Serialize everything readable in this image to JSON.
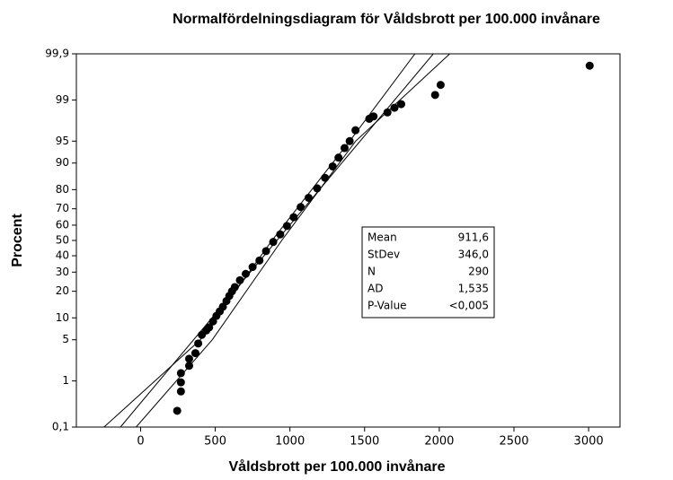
{
  "chart_data": {
    "type": "probability",
    "title": "Normalfördelningsdiagram för Våldsbrott per 100.000 invånare",
    "xlabel": "Våldsbrott per 100.000 invånare",
    "ylabel": "Procent",
    "xlim": [
      -430,
      3210
    ],
    "xticks": [
      0,
      500,
      1000,
      1500,
      2000,
      2500,
      3000
    ],
    "ylim": [
      0.1,
      99.9
    ],
    "yscale": "normal",
    "yticks": [
      {
        "value": 0.1,
        "label": "0,1"
      },
      1,
      5,
      10,
      20,
      30,
      40,
      50,
      60,
      70,
      80,
      90,
      95,
      99,
      {
        "value": 99.9,
        "label": "99,9"
      }
    ],
    "series": [
      {
        "kind": "line",
        "color": "#000000",
        "x": [
          -245,
          400,
          880,
          1400,
          1837
        ],
        "values": [
          0.1,
          5,
          50,
          95,
          99.9
        ]
      },
      {
        "kind": "line",
        "color": "#000000",
        "x": [
          -135,
          1960
        ],
        "values": [
          0.1,
          99.9
        ]
      },
      {
        "kind": "line",
        "color": "#000000",
        "x": [
          -30,
          480,
          945,
          1440,
          2070
        ],
        "values": [
          0.1,
          5,
          50,
          95,
          99.9
        ]
      },
      {
        "kind": "scatter",
        "color": "#000000",
        "x": [
          245,
          270,
          270,
          270,
          325,
          325,
          367,
          386,
          410,
          440,
          459,
          485,
          508,
          530,
          551,
          575,
          594,
          612,
          631,
          665,
          704,
          750,
          796,
          840,
          888,
          935,
          980,
          1025,
          1072,
          1125,
          1182,
          1235,
          1286,
          1325,
          1366,
          1400,
          1439,
          1531,
          1560,
          1653,
          1700,
          1745,
          1972,
          2009,
          3007
        ],
        "values": [
          0.24,
          0.62,
          0.94,
          1.4,
          1.9,
          2.5,
          3.1,
          4.4,
          5.9,
          6.8,
          7.5,
          9,
          10.6,
          12,
          13.6,
          15.8,
          17.9,
          20,
          22,
          25.5,
          29,
          33,
          37,
          43,
          49,
          54,
          59.5,
          65,
          71,
          76,
          80.6,
          85,
          89,
          91.5,
          93.7,
          95,
          96.6,
          97.8,
          98,
          98.3,
          98.6,
          98.8,
          99.2,
          99.5,
          99.81
        ]
      }
    ],
    "stats": [
      [
        "Mean",
        "911,6"
      ],
      [
        "StDev",
        "346,0"
      ],
      [
        "N",
        "290"
      ],
      [
        "AD",
        "1,535"
      ],
      [
        "P-Value",
        "<0,005"
      ]
    ]
  }
}
